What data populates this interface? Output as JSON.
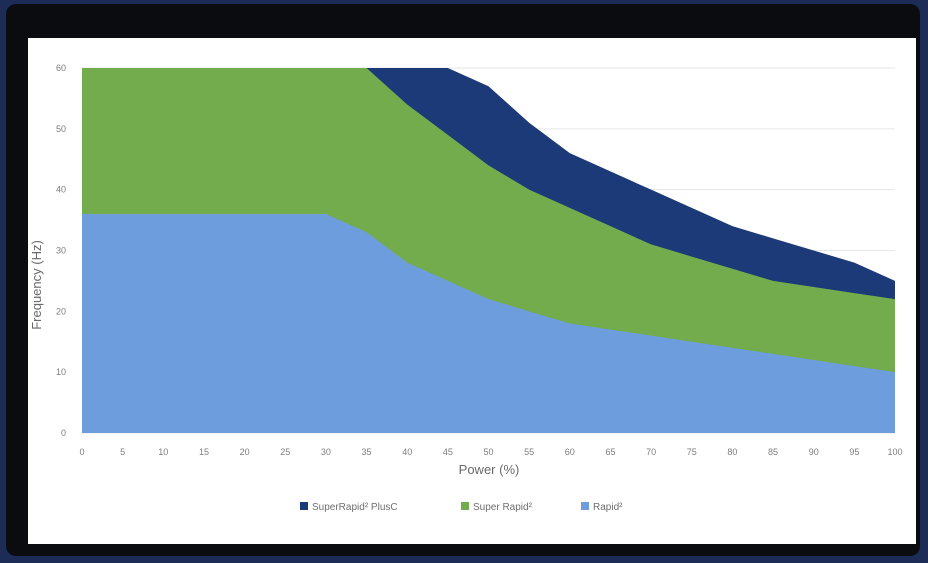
{
  "chart_data": {
    "type": "area",
    "xlabel": "Power (%)",
    "ylabel": "Frequency (Hz)",
    "xlim": [
      0,
      100
    ],
    "ylim": [
      0,
      60
    ],
    "x_ticks": [
      "0",
      "5",
      "10",
      "15",
      "20",
      "25",
      "30",
      "35",
      "40",
      "45",
      "50",
      "55",
      "60",
      "65",
      "70",
      "75",
      "80",
      "85",
      "90",
      "95",
      "100"
    ],
    "y_ticks": [
      "0",
      "10",
      "20",
      "30",
      "40",
      "50",
      "60"
    ],
    "grid": "horizontal",
    "legend_position": "bottom",
    "x": [
      0,
      5,
      10,
      15,
      20,
      25,
      30,
      35,
      40,
      45,
      50,
      55,
      60,
      65,
      70,
      75,
      80,
      85,
      90,
      95,
      100
    ],
    "series": [
      {
        "name": "SuperRapid² PlusC",
        "color": "#1c3a78",
        "values": [
          60,
          60,
          60,
          60,
          60,
          60,
          60,
          60,
          60,
          60,
          57,
          51,
          46,
          43,
          40,
          37,
          34,
          32,
          30,
          28,
          25
        ]
      },
      {
        "name": "Super Rapid²",
        "color": "#72ac4d",
        "values": [
          60,
          60,
          60,
          60,
          60,
          60,
          60,
          60,
          54,
          49,
          44,
          40,
          37,
          34,
          31,
          29,
          27,
          25,
          24,
          23,
          22
        ]
      },
      {
        "name": "Rapid²",
        "color": "#6d9ddc",
        "values": [
          36,
          36,
          36,
          36,
          36,
          36,
          36,
          33,
          28,
          25,
          22,
          20,
          18,
          17,
          16,
          15,
          14,
          13,
          12,
          11,
          10
        ]
      }
    ]
  }
}
